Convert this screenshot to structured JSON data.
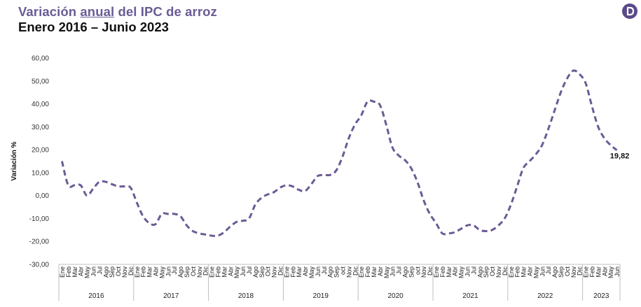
{
  "header": {
    "title_pre": "Variación ",
    "title_underlined": "anual",
    "title_post": " del IPC de arroz",
    "subtitle": "Enero 2016 – Junio 2023"
  },
  "logo_icon": "brand-d-logo-icon",
  "colors": {
    "title": "#6b5b95",
    "line": "#6b5b95",
    "logo": "#5a4a8a",
    "axis": "#bfbfbf"
  },
  "chart_data": {
    "type": "line",
    "title": "Variación anual del IPC de arroz",
    "subtitle": "Enero 2016 – Junio 2023",
    "ylabel": "Variación %",
    "xlabel": "",
    "ylim": [
      -30,
      60
    ],
    "yticks": [
      "-30,00",
      "-20,00",
      "-10,00",
      "0,00",
      "10,00",
      "20,00",
      "30,00",
      "40,00",
      "50,00",
      "60,00"
    ],
    "yticks_values": [
      -30,
      -20,
      -10,
      0,
      10,
      20,
      30,
      40,
      50,
      60
    ],
    "line_style": "dashed",
    "grid": false,
    "end_label": "19,82",
    "years": [
      {
        "year": "2016",
        "months": [
          "Ene",
          "Feb",
          "Mar",
          "Abr",
          "May",
          "Jun",
          "Jul",
          "Ago",
          "Sep",
          "Oct",
          "Nov",
          "Dic"
        ]
      },
      {
        "year": "2017",
        "months": [
          "Ene",
          "Feb",
          "Mar",
          "Abr",
          "May",
          "Jun",
          "Jul",
          "Ago",
          "Sep",
          "Oct",
          "Nov",
          "Dic"
        ]
      },
      {
        "year": "2018",
        "months": [
          "Ene",
          "Feb",
          "Mar",
          "Abr",
          "May",
          "Jun",
          "Jul",
          "Ago",
          "Sep",
          "Oct",
          "Nov",
          "Dic"
        ]
      },
      {
        "year": "2019",
        "months": [
          "Ene",
          "Feb",
          "Mar",
          "Abr",
          "May",
          "Jun",
          "Jul",
          "Ago",
          "Sep",
          "oct",
          "Nov",
          "Dic"
        ]
      },
      {
        "year": "2020",
        "months": [
          "Ene",
          "Feb",
          "Mar",
          "Abr",
          "May",
          "Jun",
          "Jul",
          "Ago",
          "Sep",
          "oct",
          "Nov",
          "Dic"
        ]
      },
      {
        "year": "2021",
        "months": [
          "Ene",
          "Feb",
          "Mar",
          "Abr",
          "May",
          "Jun",
          "Jul",
          "Ago",
          "Sep",
          "Oct",
          "Nov",
          "Dic"
        ]
      },
      {
        "year": "2022",
        "months": [
          "Ene",
          "Feb",
          "Mar",
          "Abr",
          "May",
          "Jun",
          "Jul",
          "Ago",
          "Sep",
          "Oct",
          "Nov",
          "Dic"
        ]
      },
      {
        "year": "2023",
        "months": [
          "Ene",
          "Feb",
          "Mar",
          "Abr",
          "May",
          "Jun"
        ]
      }
    ],
    "series": [
      {
        "values": [
          15.0,
          4.5,
          4.5,
          4.5,
          0.0,
          3.0,
          6.0,
          6.0,
          5.0,
          4.0,
          4.0,
          3.5,
          -3.0,
          -9.0,
          -12.0,
          -12.5,
          -8.0,
          -8.0,
          -8.0,
          -9.0,
          -13.0,
          -15.5,
          -16.5,
          -17.0,
          -17.5,
          -17.5,
          -16.0,
          -13.5,
          -11.5,
          -11.0,
          -10.0,
          -4.0,
          -1.0,
          0.5,
          1.5,
          3.5,
          4.5,
          4.0,
          2.5,
          2.0,
          5.0,
          8.5,
          9.0,
          9.0,
          11.0,
          17.0,
          25.0,
          31.0,
          35.0,
          41.0,
          41.0,
          39.5,
          31.0,
          21.0,
          17.5,
          15.5,
          12.0,
          6.0,
          -2.0,
          -8.0,
          -12.0,
          -16.5,
          -16.5,
          -16.0,
          -14.5,
          -13.0,
          -13.0,
          -15.0,
          -15.5,
          -15.0,
          -13.0,
          -10.0,
          -4.0,
          4.0,
          12.0,
          15.0,
          18.0,
          22.0,
          29.0,
          37.0,
          45.0,
          51.0,
          54.5,
          53.0,
          49.0,
          39.0,
          30.0,
          25.0,
          22.0,
          19.82
        ]
      }
    ]
  }
}
